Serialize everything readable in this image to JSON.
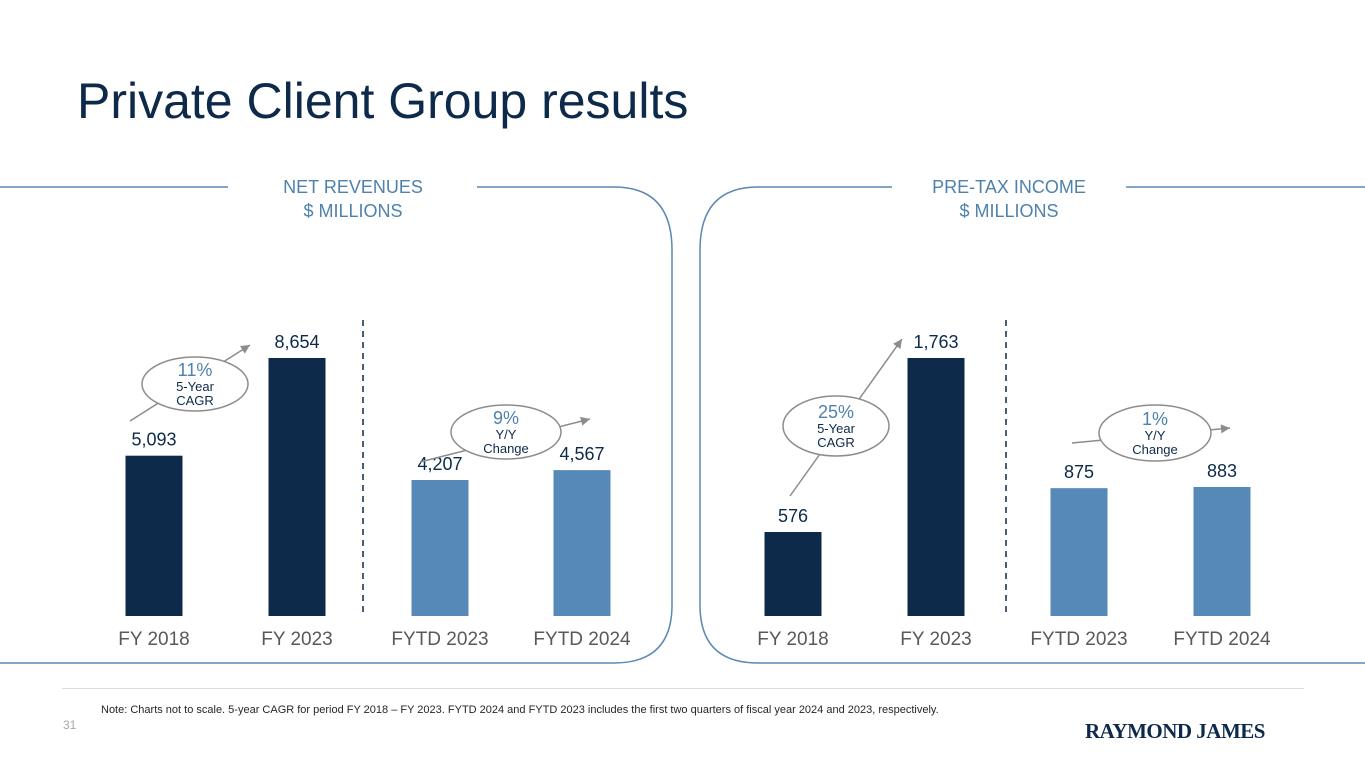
{
  "title": "Private Client Group results",
  "colors": {
    "navy": "#0d2a4a",
    "steel_blue": "#5689b8",
    "accent": "#4f81ad",
    "frame": "#5a87b3"
  },
  "chart_data": [
    {
      "type": "bar",
      "title": "NET REVENUES",
      "subtitle": "$ MILLIONS",
      "categories": [
        "FY 2018",
        "FY 2023",
        "FYTD 2023",
        "FYTD 2024"
      ],
      "values": [
        5093,
        8654,
        4207,
        4567
      ],
      "labels": [
        "5,093",
        "8,654",
        "4,207",
        "4,567"
      ],
      "callouts": [
        {
          "pct": "11%",
          "line1": "5-Year",
          "line2": "CAGR"
        },
        {
          "pct": "9%",
          "line1": "Y/Y",
          "line2": "Change"
        }
      ]
    },
    {
      "type": "bar",
      "title": "PRE-TAX INCOME",
      "subtitle": "$ MILLIONS",
      "categories": [
        "FY 2018",
        "FY 2023",
        "FYTD 2023",
        "FYTD 2024"
      ],
      "values": [
        576,
        1763,
        875,
        883
      ],
      "labels": [
        "576",
        "1,763",
        "875",
        "883"
      ],
      "callouts": [
        {
          "pct": "25%",
          "line1": "5-Year",
          "line2": "CAGR"
        },
        {
          "pct": "1%",
          "line1": "Y/Y",
          "line2": "Change"
        }
      ]
    }
  ],
  "note": "Note: Charts not to scale. 5-year CAGR for period FY 2018 – FY 2023. FYTD 2024 and FYTD 2023 includes the first two quarters of fiscal year 2024 and 2023, respectively.",
  "page_number": "31",
  "logo": "RAYMOND JAMES"
}
